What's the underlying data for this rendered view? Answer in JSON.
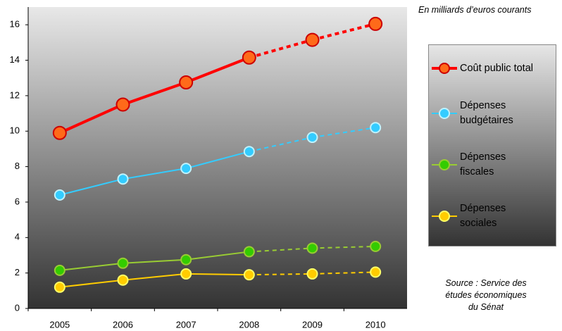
{
  "chart_data": {
    "type": "line",
    "unit_note": "En milliards d’euros courants",
    "source": "Source : Service des\nétudes économiques\ndu Sénat",
    "categories": [
      "2005",
      "2006",
      "2007",
      "2008",
      "2009",
      "2010"
    ],
    "dashed_from": 3,
    "series": [
      {
        "name": "Coût public total",
        "color": "#ff0000",
        "marker_fill": "#ff6a1a",
        "marker_stroke": "#cc0000",
        "width": 4,
        "radius": 9,
        "values": [
          9.9,
          11.5,
          12.75,
          14.15,
          15.15,
          16.05
        ]
      },
      {
        "name": "Dépenses\nbudgétaires",
        "color": "#33ccff",
        "marker_fill": "#33ccff",
        "marker_stroke": "#bff3ff",
        "width": 2,
        "radius": 7,
        "values": [
          6.4,
          7.3,
          7.9,
          8.85,
          9.65,
          10.2
        ]
      },
      {
        "name": "Dépenses\nfiscales",
        "color": "#99cc33",
        "marker_fill": "#33cc00",
        "marker_stroke": "#99cc33",
        "width": 2,
        "radius": 7,
        "values": [
          2.15,
          2.55,
          2.75,
          3.2,
          3.4,
          3.5
        ]
      },
      {
        "name": "Dépenses\nsociales",
        "color": "#ffcc00",
        "marker_fill": "#ffcc00",
        "marker_stroke": "#ffff66",
        "width": 2,
        "radius": 7,
        "values": [
          1.2,
          1.6,
          1.95,
          1.9,
          1.95,
          2.05
        ]
      }
    ],
    "ylim": [
      0,
      17
    ],
    "yticks": [
      0,
      2,
      4,
      6,
      8,
      10,
      12,
      14,
      16
    ]
  }
}
